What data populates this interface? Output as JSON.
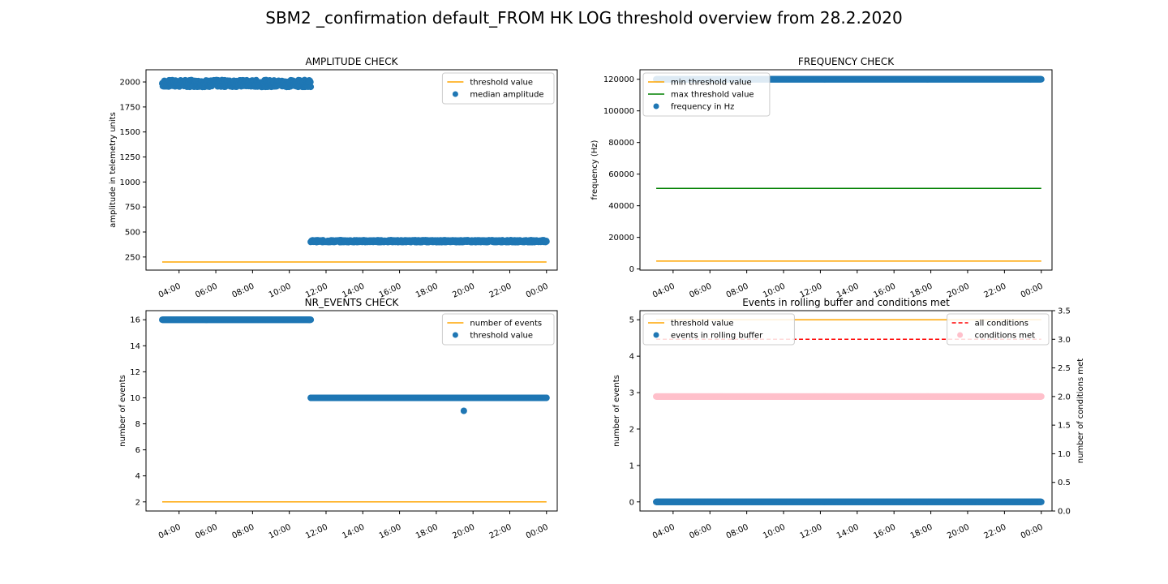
{
  "figure": {
    "title": "SBM2 _confirmation default_FROM HK LOG threshold overview from 28.2.2020"
  },
  "colors": {
    "blue": "#1f77b4",
    "orange": "#ffa500",
    "green": "#008000",
    "red": "#ff0000",
    "pink": "#ffc0cb",
    "axis": "#000000"
  },
  "chart_data": [
    {
      "id": "amplitude",
      "type": "scatter",
      "title": "AMPLITUDE CHECK",
      "xlabel": "",
      "ylabel": "amplitude in telemetry units",
      "xlim": [
        "02:12",
        "00:35"
      ],
      "ylim": [
        119,
        2122
      ],
      "x_ticks": [
        "04:00",
        "06:00",
        "08:00",
        "10:00",
        "12:00",
        "14:00",
        "16:00",
        "18:00",
        "20:00",
        "22:00",
        "00:00"
      ],
      "y_ticks": [
        250,
        500,
        750,
        1000,
        1250,
        1500,
        1750,
        2000
      ],
      "legend": {
        "position": "top-right",
        "entries": [
          {
            "label": "threshold value",
            "kind": "line",
            "color": "#ffa500"
          },
          {
            "label": "median amplitude",
            "kind": "dot",
            "color": "#1f77b4"
          }
        ]
      },
      "series": [
        {
          "name": "threshold value",
          "kind": "line",
          "color": "#ffa500",
          "points": [
            [
              "03:05",
              200
            ],
            [
              "00:00",
              200
            ]
          ]
        },
        {
          "name": "median amplitude",
          "kind": "scatter",
          "color": "#1f77b4",
          "segments": [
            {
              "from": "03:05",
              "to": "11:10",
              "value": 1985,
              "spread": 35
            },
            {
              "from": "11:10",
              "to": "00:00",
              "value": 408,
              "spread": 10
            }
          ]
        }
      ]
    },
    {
      "id": "frequency",
      "type": "scatter",
      "title": "FREQUENCY CHECK",
      "xlabel": "",
      "ylabel": "frequency (Hz)",
      "xlim": [
        "02:12",
        "00:35"
      ],
      "ylim": [
        -700,
        126000
      ],
      "x_ticks": [
        "04:00",
        "06:00",
        "08:00",
        "10:00",
        "12:00",
        "14:00",
        "16:00",
        "18:00",
        "20:00",
        "22:00",
        "00:00"
      ],
      "y_ticks": [
        0,
        20000,
        40000,
        60000,
        80000,
        100000,
        120000
      ],
      "legend": {
        "position": "top-left",
        "entries": [
          {
            "label": "min threshold value",
            "kind": "line",
            "color": "#ffa500"
          },
          {
            "label": "max threshold value",
            "kind": "line",
            "color": "#008000"
          },
          {
            "label": "frequency in Hz",
            "kind": "dot",
            "color": "#1f77b4"
          }
        ]
      },
      "series": [
        {
          "name": "min threshold value",
          "kind": "line",
          "color": "#ffa500",
          "points": [
            [
              "03:05",
              5000
            ],
            [
              "00:00",
              5000
            ]
          ]
        },
        {
          "name": "max threshold value",
          "kind": "line",
          "color": "#008000",
          "points": [
            [
              "03:05",
              51000
            ],
            [
              "00:00",
              51000
            ]
          ]
        },
        {
          "name": "frequency in Hz",
          "kind": "scatter",
          "color": "#1f77b4",
          "segments": [
            {
              "from": "03:05",
              "to": "00:00",
              "value": 120000,
              "spread": 0
            }
          ]
        }
      ]
    },
    {
      "id": "nr_events",
      "type": "scatter",
      "title": "NR_EVENTS CHECK",
      "xlabel": "",
      "ylabel": "number of events",
      "xlim": [
        "02:12",
        "00:35"
      ],
      "ylim": [
        1.3,
        16.7
      ],
      "x_ticks": [
        "04:00",
        "06:00",
        "08:00",
        "10:00",
        "12:00",
        "14:00",
        "16:00",
        "18:00",
        "20:00",
        "22:00",
        "00:00"
      ],
      "y_ticks": [
        2,
        4,
        6,
        8,
        10,
        12,
        14,
        16
      ],
      "legend": {
        "position": "top-right",
        "entries": [
          {
            "label": "number of events",
            "kind": "line",
            "color": "#ffa500"
          },
          {
            "label": "threshold value",
            "kind": "dot",
            "color": "#1f77b4"
          }
        ]
      },
      "series": [
        {
          "name": "number of events",
          "kind": "line",
          "color": "#ffa500",
          "points": [
            [
              "03:05",
              2
            ],
            [
              "00:00",
              2
            ]
          ]
        },
        {
          "name": "threshold value",
          "kind": "scatter",
          "color": "#1f77b4",
          "segments": [
            {
              "from": "03:05",
              "to": "11:10",
              "value": 16,
              "spread": 0
            },
            {
              "from": "11:10",
              "to": "00:00",
              "value": 10,
              "spread": 0
            }
          ],
          "points": [
            [
              "19:30",
              9
            ]
          ]
        }
      ]
    },
    {
      "id": "rolling_buffer",
      "type": "scatter",
      "title": "Events in rolling buffer and conditions met",
      "xlabel": "",
      "ylabel": "number of events",
      "ylabel_right": "number of conditions met",
      "xlim": [
        "02:12",
        "00:35"
      ],
      "ylim": [
        -0.25,
        5.25
      ],
      "ylim_right": [
        0,
        3.5
      ],
      "x_ticks": [
        "04:00",
        "06:00",
        "08:00",
        "10:00",
        "12:00",
        "14:00",
        "16:00",
        "18:00",
        "20:00",
        "22:00",
        "00:00"
      ],
      "y_ticks": [
        0,
        1,
        2,
        3,
        4,
        5
      ],
      "y_ticks_right": [
        "0.0",
        "0.5",
        "1.0",
        "1.5",
        "2.0",
        "2.5",
        "3.0",
        "3.5"
      ],
      "legend": {
        "position": "top-left",
        "entries": [
          {
            "label": "threshold value",
            "kind": "line",
            "color": "#ffa500"
          },
          {
            "label": "events in rolling buffer",
            "kind": "dot",
            "color": "#1f77b4"
          }
        ]
      },
      "legend_right": {
        "position": "top-right",
        "entries": [
          {
            "label": "all conditions",
            "kind": "dash",
            "color": "#ff0000"
          },
          {
            "label": "conditions met",
            "kind": "dot",
            "color": "#ffc0cb"
          }
        ]
      },
      "series": [
        {
          "name": "threshold value",
          "kind": "line",
          "axis": "left",
          "color": "#ffa500",
          "points": [
            [
              "03:05",
              5
            ],
            [
              "00:00",
              5
            ]
          ]
        },
        {
          "name": "events in rolling buffer",
          "kind": "scatter",
          "axis": "left",
          "color": "#1f77b4",
          "segments": [
            {
              "from": "03:05",
              "to": "00:00",
              "value": 0,
              "spread": 0
            }
          ]
        },
        {
          "name": "all conditions",
          "kind": "dash",
          "axis": "right",
          "color": "#ff0000",
          "points": [
            [
              "03:05",
              3
            ],
            [
              "00:00",
              3
            ]
          ]
        },
        {
          "name": "conditions met",
          "kind": "scatter",
          "axis": "right",
          "color": "#ffc0cb",
          "segments": [
            {
              "from": "03:05",
              "to": "00:00",
              "value": 2,
              "spread": 0
            }
          ]
        }
      ]
    }
  ]
}
